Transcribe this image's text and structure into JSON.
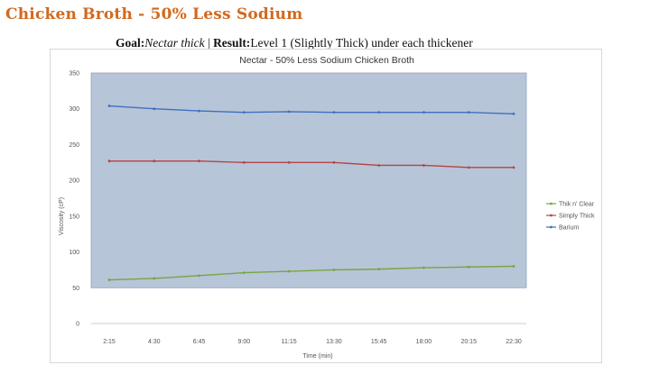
{
  "slide": {
    "title": "Chicken Broth - 50% Less Sodium",
    "goal_label": "Goal:",
    "goal_value": "Nectar thick",
    "separator": " | ",
    "result_label": "Result:",
    "result_value": "Level 1 (Slightly Thick) under each thickener"
  },
  "chart_data": {
    "type": "line",
    "title": "Nectar  - 50% Less Sodium Chicken Broth",
    "xlabel": "Time (min)",
    "ylabel": "Viscosity (cP)",
    "categories": [
      "2:15",
      "4:30",
      "6:45",
      "9:00",
      "11:15",
      "13:30",
      "15:45",
      "18:00",
      "20:15",
      "22:30"
    ],
    "y_tick_labels": [
      "0",
      "50",
      "100",
      "150",
      "200",
      "250",
      "300",
      "350"
    ],
    "ylim": [
      0,
      350
    ],
    "grid": false,
    "legend_position": "right",
    "shaded_band": {
      "from": 50,
      "to": 350,
      "color": "#b7c5d8"
    },
    "series": [
      {
        "name": "Thik n' Clear",
        "color": "#77a543",
        "values": [
          61,
          63,
          67,
          71,
          73,
          75,
          76,
          78,
          79,
          80
        ]
      },
      {
        "name": "Simply Thick",
        "color": "#b24545",
        "values": [
          227,
          227,
          227,
          225,
          225,
          225,
          221,
          221,
          218,
          218
        ]
      },
      {
        "name": "Barium",
        "color": "#3f6fbf",
        "values": [
          304,
          300,
          297,
          295,
          296,
          295,
          295,
          295,
          295,
          293
        ]
      }
    ],
    "legend_order": [
      "Thik n' Clear",
      "Simply Thick",
      "Barium"
    ]
  }
}
